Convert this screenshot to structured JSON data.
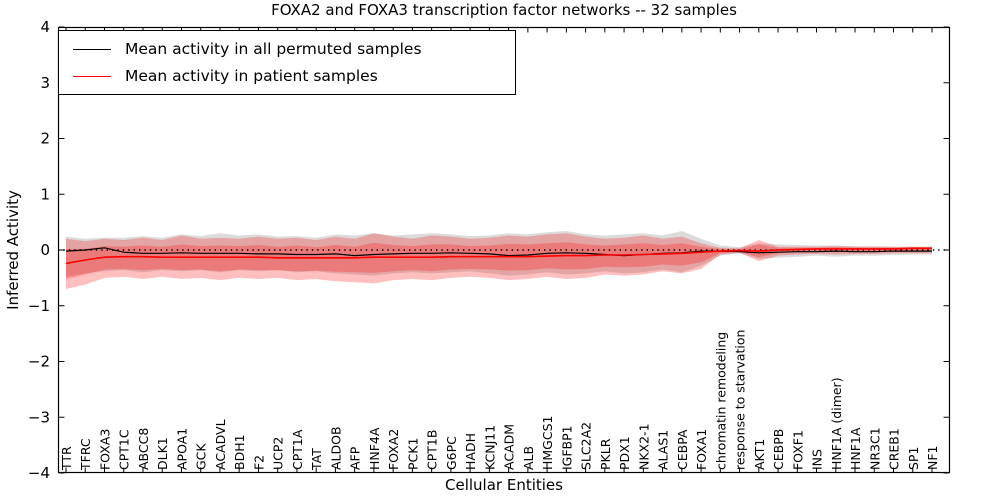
{
  "chart_data": {
    "type": "line",
    "title": "FOXA2 and FOXA3 transcription factor networks -- 32 samples",
    "xlabel": "Cellular Entities",
    "ylabel": "Inferred Activity",
    "ylim": [
      -4,
      4
    ],
    "grid": false,
    "zero_reference_line": 0,
    "legend_position": "upper left",
    "ytick_labels": [
      "4",
      "3",
      "2",
      "1",
      "0",
      "−1",
      "−2",
      "−3",
      "−4"
    ],
    "categories": [
      "TTR",
      "TFRC",
      "FOXA3",
      "CPT1C",
      "ABCC8",
      "DLK1",
      "APOA1",
      "GCK",
      "ACADVL",
      "BDH1",
      "F2",
      "UCP2",
      "CPT1A",
      "TAT",
      "ALDOB",
      "AFP",
      "HNF4A",
      "FOXA2",
      "PCK1",
      "CPT1B",
      "G6PC",
      "HADH",
      "KCNJ11",
      "ACADM",
      "ALB",
      "HMGCS1",
      "IGFBP1",
      "SLC2A2",
      "PKLR",
      "PDX1",
      "NKX2-1",
      "ALAS1",
      "CEBPA",
      "FOXA1",
      "chromatin remodeling",
      "response to starvation",
      "AKT1",
      "CEBPB",
      "FOXF1",
      "INS",
      "HNF1A (dimer)",
      "HNF1A",
      "NR3C1",
      "CREB1",
      "SP1",
      "NF1"
    ],
    "series": [
      {
        "name": "Mean activity in all permuted samples",
        "color": "#000000",
        "line_width": 1.2,
        "values": [
          -0.02,
          0.0,
          0.04,
          -0.04,
          -0.06,
          -0.06,
          -0.05,
          -0.06,
          -0.06,
          -0.06,
          -0.07,
          -0.07,
          -0.08,
          -0.08,
          -0.07,
          -0.1,
          -0.08,
          -0.07,
          -0.06,
          -0.06,
          -0.05,
          -0.06,
          -0.07,
          -0.1,
          -0.09,
          -0.06,
          -0.05,
          -0.06,
          -0.08,
          -0.1,
          -0.08,
          -0.06,
          -0.05,
          -0.02,
          -0.02,
          -0.03,
          -0.05,
          -0.04,
          -0.03,
          -0.03,
          -0.02,
          -0.03,
          -0.03,
          -0.02,
          -0.02,
          -0.02
        ],
        "band": {
          "color": "#999999",
          "opacity": 0.35,
          "upper": [
            0.24,
            0.2,
            0.22,
            0.22,
            0.25,
            0.22,
            0.28,
            0.25,
            0.3,
            0.26,
            0.28,
            0.24,
            0.25,
            0.22,
            0.28,
            0.26,
            0.3,
            0.26,
            0.28,
            0.3,
            0.28,
            0.25,
            0.26,
            0.3,
            0.28,
            0.32,
            0.34,
            0.28,
            0.26,
            0.28,
            0.3,
            0.26,
            0.34,
            0.2,
            0.08,
            0.05,
            0.12,
            0.1,
            0.09,
            0.08,
            0.08,
            0.07,
            0.07,
            0.06,
            0.06,
            0.06
          ],
          "lower": [
            -0.48,
            -0.42,
            -0.38,
            -0.36,
            -0.4,
            -0.36,
            -0.38,
            -0.36,
            -0.4,
            -0.36,
            -0.38,
            -0.36,
            -0.4,
            -0.38,
            -0.42,
            -0.44,
            -0.46,
            -0.42,
            -0.4,
            -0.42,
            -0.4,
            -0.38,
            -0.42,
            -0.46,
            -0.44,
            -0.4,
            -0.44,
            -0.42,
            -0.38,
            -0.42,
            -0.4,
            -0.35,
            -0.4,
            -0.28,
            -0.1,
            -0.06,
            -0.16,
            -0.14,
            -0.12,
            -0.1,
            -0.12,
            -0.1,
            -0.1,
            -0.09,
            -0.08,
            -0.08
          ]
        }
      },
      {
        "name": "Mean activity in patient samples",
        "color": "#ff0000",
        "line_width": 1.6,
        "values": [
          -0.24,
          -0.18,
          -0.13,
          -0.12,
          -0.12,
          -0.13,
          -0.13,
          -0.13,
          -0.13,
          -0.13,
          -0.13,
          -0.14,
          -0.14,
          -0.14,
          -0.14,
          -0.14,
          -0.13,
          -0.13,
          -0.13,
          -0.13,
          -0.12,
          -0.12,
          -0.12,
          -0.12,
          -0.12,
          -0.11,
          -0.1,
          -0.1,
          -0.09,
          -0.09,
          -0.08,
          -0.07,
          -0.06,
          -0.04,
          -0.02,
          -0.01,
          -0.02,
          0.0,
          0.01,
          0.02,
          0.02,
          0.02,
          0.02,
          0.02,
          0.03,
          0.03
        ],
        "band": {
          "color": "#ff0000",
          "opacity": 0.25,
          "upper": [
            0.2,
            0.16,
            0.2,
            0.18,
            0.22,
            0.18,
            0.26,
            0.2,
            0.22,
            0.2,
            0.24,
            0.2,
            0.22,
            0.18,
            0.24,
            0.2,
            0.3,
            0.24,
            0.2,
            0.26,
            0.24,
            0.2,
            0.22,
            0.26,
            0.24,
            0.28,
            0.3,
            0.24,
            0.2,
            0.22,
            0.26,
            0.2,
            0.24,
            0.12,
            0.04,
            0.03,
            0.18,
            0.06,
            0.06,
            0.06,
            0.07,
            0.06,
            0.06,
            0.06,
            0.06,
            0.06
          ],
          "lower": [
            -0.7,
            -0.62,
            -0.5,
            -0.48,
            -0.52,
            -0.48,
            -0.52,
            -0.5,
            -0.54,
            -0.5,
            -0.52,
            -0.5,
            -0.54,
            -0.52,
            -0.56,
            -0.58,
            -0.6,
            -0.54,
            -0.52,
            -0.54,
            -0.5,
            -0.48,
            -0.5,
            -0.54,
            -0.52,
            -0.48,
            -0.52,
            -0.5,
            -0.44,
            -0.46,
            -0.44,
            -0.38,
            -0.42,
            -0.34,
            -0.08,
            -0.05,
            -0.2,
            -0.1,
            -0.08,
            -0.07,
            -0.08,
            -0.07,
            -0.07,
            -0.06,
            -0.06,
            -0.06
          ]
        },
        "band_inner": {
          "color": "#ff0000",
          "opacity": 0.25,
          "upper": [
            0.02,
            0.02,
            0.07,
            0.06,
            0.08,
            0.06,
            0.1,
            0.07,
            0.08,
            0.07,
            0.09,
            0.06,
            0.08,
            0.05,
            0.09,
            0.06,
            0.13,
            0.09,
            0.07,
            0.1,
            0.1,
            0.07,
            0.08,
            0.11,
            0.1,
            0.12,
            0.14,
            0.1,
            0.08,
            0.1,
            0.12,
            0.09,
            0.12,
            0.06,
            0.02,
            0.01,
            0.1,
            0.04,
            0.04,
            0.04,
            0.05,
            0.04,
            0.04,
            0.04,
            0.05,
            0.05
          ],
          "lower": [
            -0.52,
            -0.44,
            -0.35,
            -0.34,
            -0.36,
            -0.34,
            -0.36,
            -0.35,
            -0.38,
            -0.35,
            -0.36,
            -0.36,
            -0.38,
            -0.37,
            -0.39,
            -0.4,
            -0.41,
            -0.38,
            -0.36,
            -0.38,
            -0.35,
            -0.34,
            -0.35,
            -0.37,
            -0.36,
            -0.33,
            -0.35,
            -0.34,
            -0.3,
            -0.31,
            -0.3,
            -0.26,
            -0.28,
            -0.22,
            -0.06,
            -0.03,
            -0.13,
            -0.06,
            -0.04,
            -0.03,
            -0.04,
            -0.03,
            -0.03,
            -0.03,
            -0.02,
            -0.02
          ]
        }
      }
    ]
  }
}
